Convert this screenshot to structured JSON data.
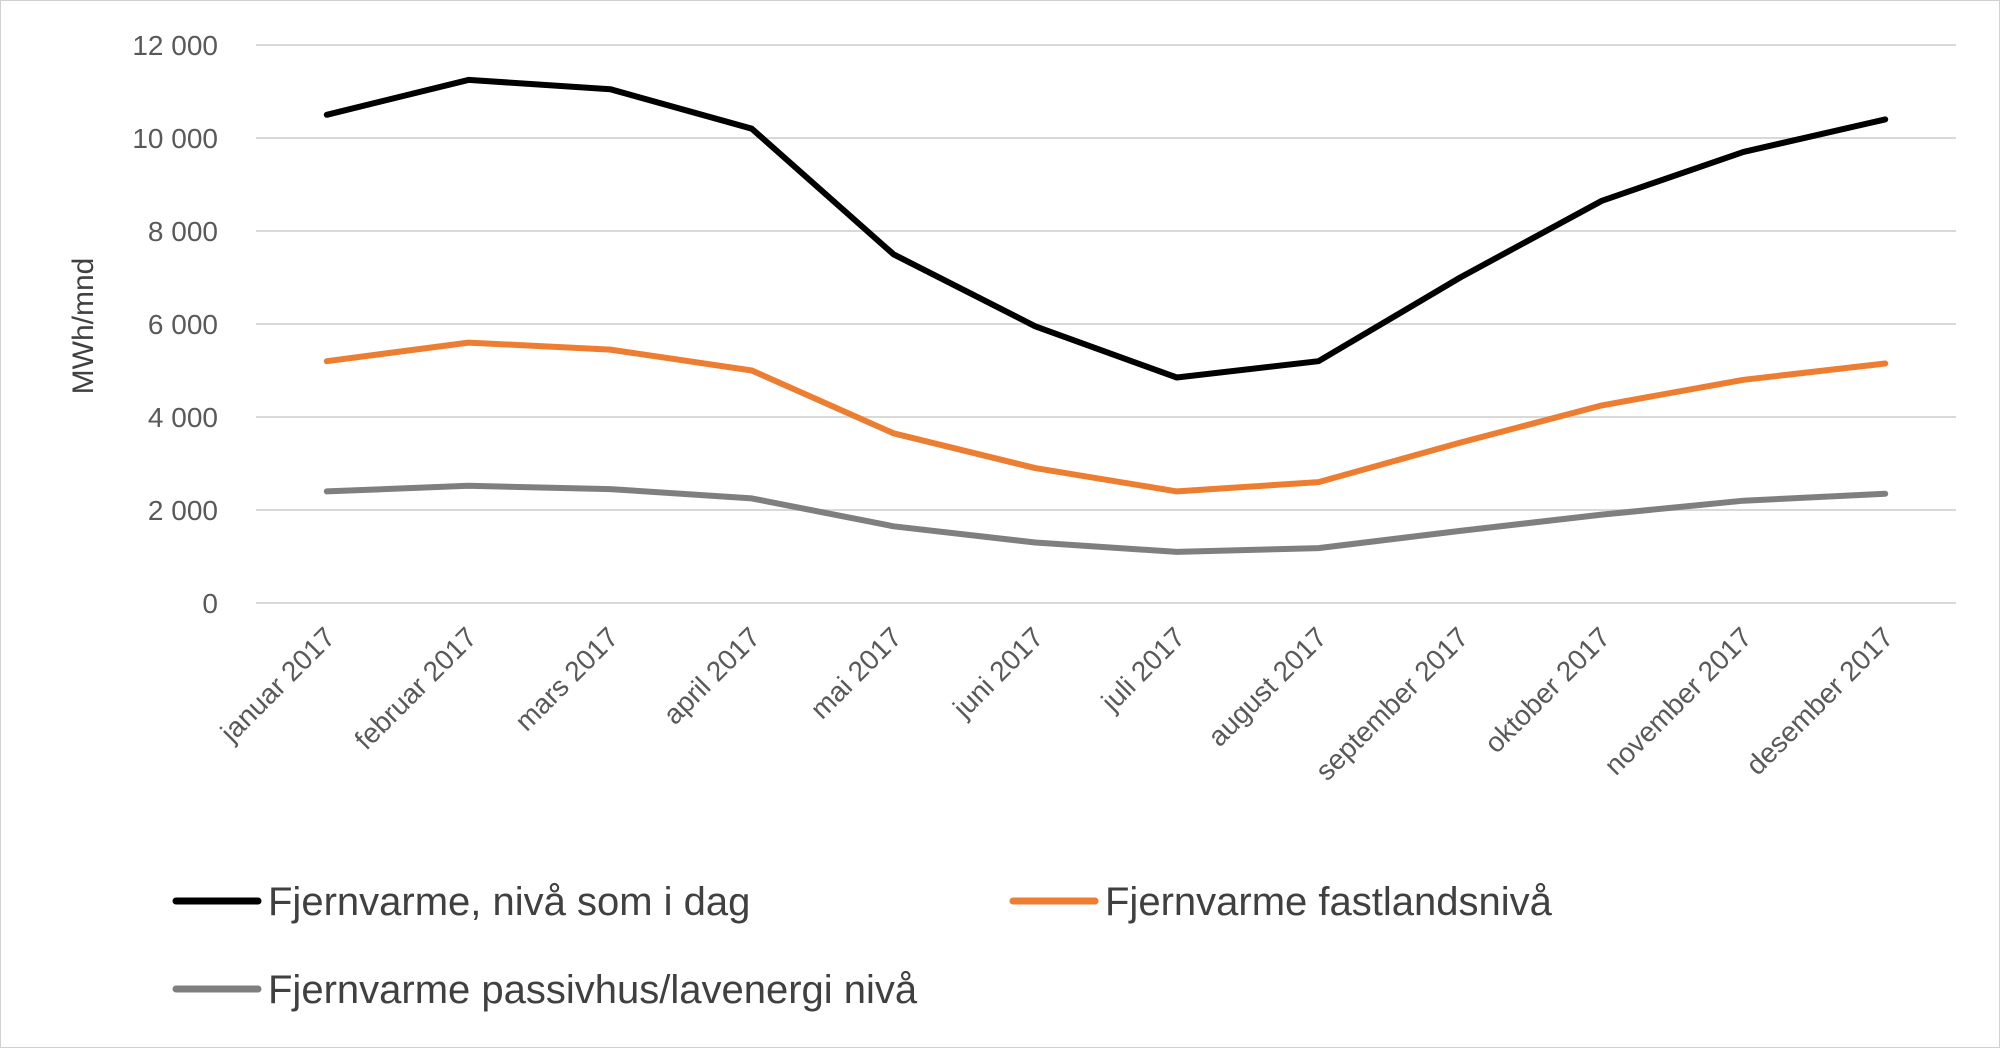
{
  "chart_data": {
    "type": "line",
    "title": "",
    "xlabel": "",
    "ylabel": "MWh/mnd",
    "categories": [
      "januar 2017",
      "februar 2017",
      "mars 2017",
      "april 2017",
      "mai 2017",
      "juni 2017",
      "juli 2017",
      "august 2017",
      "september 2017",
      "oktober 2017",
      "november 2017",
      "desember 2017"
    ],
    "ylim": [
      0,
      12000
    ],
    "yticks": [
      0,
      2000,
      4000,
      6000,
      8000,
      10000,
      12000
    ],
    "ytick_labels": [
      "0",
      "2 000",
      "4 000",
      "6 000",
      "8 000",
      "10 000",
      "12 000"
    ],
    "grid": true,
    "legend_position": "bottom",
    "series": [
      {
        "name": "Fjernvarme, nivå som i dag",
        "color": "#000000",
        "values": [
          10500,
          11250,
          11050,
          10200,
          7500,
          5950,
          4850,
          5200,
          7000,
          8650,
          9700,
          10400
        ]
      },
      {
        "name": "Fjernvarme fastlandsnivå",
        "color": "#ed7d31",
        "values": [
          5200,
          5600,
          5450,
          5000,
          3650,
          2900,
          2400,
          2600,
          3450,
          4250,
          4800,
          5150
        ]
      },
      {
        "name": "Fjernvarme passivhus/lavenergi nivå",
        "color": "#7f7f7f",
        "values": [
          2400,
          2520,
          2450,
          2250,
          1650,
          1300,
          1100,
          1180,
          1550,
          1900,
          2200,
          2350
        ]
      }
    ]
  }
}
